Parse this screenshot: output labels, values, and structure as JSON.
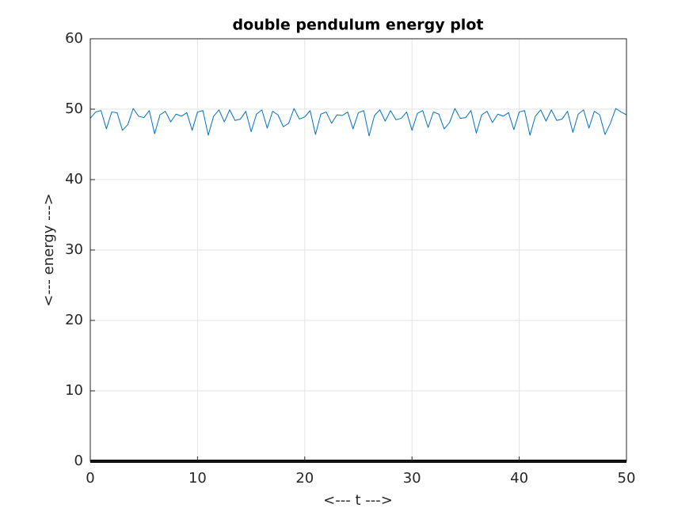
{
  "chart_data": {
    "type": "line",
    "title": "double pendulum energy plot",
    "xlabel": "<--- t --->",
    "ylabel": "<--- energy --->",
    "x": [
      0,
      0.5,
      1,
      1.5,
      2,
      2.5,
      3,
      3.5,
      4,
      4.5,
      5,
      5.5,
      6,
      6.5,
      7,
      7.5,
      8,
      8.5,
      9,
      9.5,
      10,
      10.5,
      11,
      11.5,
      12,
      12.5,
      13,
      13.5,
      14,
      14.5,
      15,
      15.5,
      16,
      16.5,
      17,
      17.5,
      18,
      18.5,
      19,
      19.5,
      20,
      20.5,
      21,
      21.5,
      22,
      22.5,
      23,
      23.5,
      24,
      24.5,
      25,
      25.5,
      26,
      26.5,
      27,
      27.5,
      28,
      28.5,
      29,
      29.5,
      30,
      30.5,
      31,
      31.5,
      32,
      32.5,
      33,
      33.5,
      34,
      34.5,
      35,
      35.5,
      36,
      36.5,
      37,
      37.5,
      38,
      38.5,
      39,
      39.5,
      40,
      40.5,
      41,
      41.5,
      42,
      42.5,
      43,
      43.5,
      44,
      44.5,
      45,
      45.5,
      46,
      46.5,
      47,
      47.5,
      48,
      48.5,
      49,
      49.5,
      50
    ],
    "series": [
      {
        "color": "#0072bd",
        "line_width": 1,
        "values": [
          48.7,
          49.6,
          49.8,
          47.2,
          49.6,
          49.5,
          47.0,
          47.8,
          50.1,
          49.0,
          48.8,
          49.8,
          46.5,
          49.2,
          49.7,
          48.2,
          49.3,
          49.0,
          49.5,
          47.0,
          49.6,
          49.8,
          46.3,
          49.0,
          49.9,
          48.2,
          49.9,
          48.4,
          48.6,
          49.7,
          46.8,
          49.3,
          49.9,
          47.3,
          49.7,
          49.2,
          47.5,
          48.0,
          50.1,
          48.6,
          48.9,
          49.8,
          46.4,
          49.3,
          49.6,
          48.0,
          49.2,
          49.1,
          49.6,
          47.2,
          49.5,
          49.8,
          46.2,
          49.1,
          49.9,
          48.3,
          49.8,
          48.5,
          48.7,
          49.6,
          47.0,
          49.4,
          49.8,
          47.4,
          49.6,
          49.3,
          47.2,
          48.1,
          50.1,
          48.7,
          48.8,
          49.8,
          46.6,
          49.2,
          49.7,
          48.1,
          49.3,
          49.0,
          49.5,
          47.1,
          49.6,
          49.8,
          46.3,
          49.0,
          49.9,
          48.3,
          49.9,
          48.4,
          48.6,
          49.7,
          46.7,
          49.3,
          49.9,
          47.3,
          49.7,
          49.2,
          46.4,
          48.0,
          50.1,
          49.6,
          49.2
        ]
      },
      {
        "color": "#000000",
        "line_width": 4,
        "x": [
          0,
          50
        ],
        "values": [
          0,
          0
        ]
      }
    ],
    "xlim": [
      0,
      50
    ],
    "xticks": [
      0,
      10,
      20,
      30,
      40,
      50
    ],
    "ylim": [
      0,
      60
    ],
    "yticks": [
      0,
      10,
      20,
      30,
      40,
      50,
      60
    ],
    "grid": true
  }
}
